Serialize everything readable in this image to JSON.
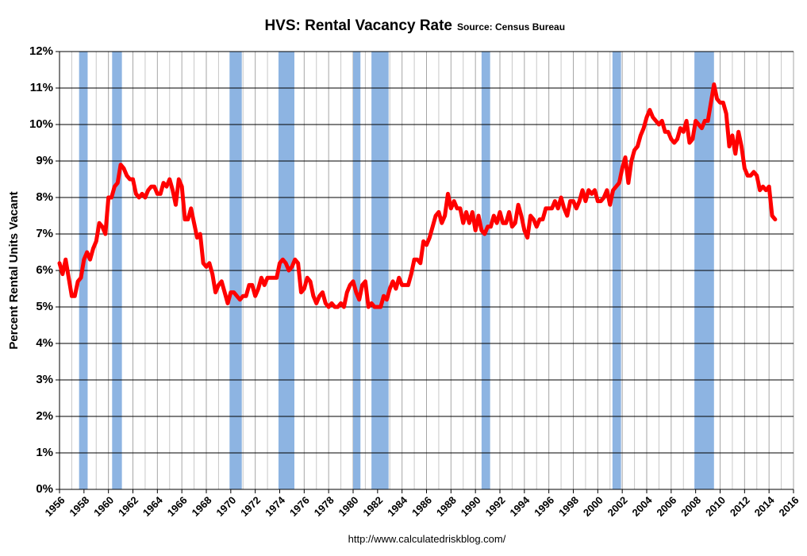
{
  "chart_data": {
    "type": "line",
    "title": "HVS: Rental Vacancy Rate",
    "subtitle": "Source: Census Bureau",
    "y_label": "Percent Rental Units Vacant",
    "footer": "http://www.calculatedriskblog.com/",
    "xlim": [
      1956,
      2016
    ],
    "xticks": [
      1956,
      1958,
      1960,
      1962,
      1964,
      1966,
      1968,
      1970,
      1972,
      1974,
      1976,
      1978,
      1980,
      1982,
      1984,
      1986,
      1988,
      1990,
      1992,
      1994,
      1996,
      1998,
      2000,
      2002,
      2004,
      2006,
      2008,
      2010,
      2012,
      2014,
      2016
    ],
    "ylim": [
      0,
      12
    ],
    "yticks": [
      {
        "value": 0,
        "label": "0%"
      },
      {
        "value": 1,
        "label": "1%"
      },
      {
        "value": 2,
        "label": "2%"
      },
      {
        "value": 3,
        "label": "3%"
      },
      {
        "value": 4,
        "label": "4%"
      },
      {
        "value": 5,
        "label": "5%"
      },
      {
        "value": 6,
        "label": "6%"
      },
      {
        "value": 7,
        "label": "7%"
      },
      {
        "value": 8,
        "label": "8%"
      },
      {
        "value": 9,
        "label": "9%"
      },
      {
        "value": 10,
        "label": "10%"
      },
      {
        "value": 11,
        "label": "11%"
      },
      {
        "value": 12,
        "label": "12%"
      }
    ],
    "grid": true,
    "recession_color": "#8db4e2",
    "recessions": [
      {
        "start": 1957.6,
        "end": 1958.3
      },
      {
        "start": 1960.3,
        "end": 1961.1
      },
      {
        "start": 1969.9,
        "end": 1970.9
      },
      {
        "start": 1973.9,
        "end": 1975.2
      },
      {
        "start": 1980.0,
        "end": 1980.6
      },
      {
        "start": 1981.5,
        "end": 1982.9
      },
      {
        "start": 1990.5,
        "end": 1991.2
      },
      {
        "start": 2001.2,
        "end": 2001.9
      },
      {
        "start": 2007.9,
        "end": 2009.5
      }
    ],
    "x": [
      1956,
      1956.25,
      1956.5,
      1956.75,
      1957,
      1957.25,
      1957.5,
      1957.75,
      1958,
      1958.25,
      1958.5,
      1958.75,
      1959,
      1959.25,
      1959.5,
      1959.75,
      1960,
      1960.25,
      1960.5,
      1960.75,
      1961,
      1961.25,
      1961.5,
      1961.75,
      1962,
      1962.25,
      1962.5,
      1962.75,
      1963,
      1963.25,
      1963.5,
      1963.75,
      1964,
      1964.25,
      1964.5,
      1964.75,
      1965,
      1965.25,
      1965.5,
      1965.75,
      1966,
      1966.25,
      1966.5,
      1966.75,
      1967,
      1967.25,
      1967.5,
      1967.75,
      1968,
      1968.25,
      1968.5,
      1968.75,
      1969,
      1969.25,
      1969.5,
      1969.75,
      1970,
      1970.25,
      1970.5,
      1970.75,
      1971,
      1971.25,
      1971.5,
      1971.75,
      1972,
      1972.25,
      1972.5,
      1972.75,
      1973,
      1973.25,
      1973.5,
      1973.75,
      1974,
      1974.25,
      1974.5,
      1974.75,
      1975,
      1975.25,
      1975.5,
      1975.75,
      1976,
      1976.25,
      1976.5,
      1976.75,
      1977,
      1977.25,
      1977.5,
      1977.75,
      1978,
      1978.25,
      1978.5,
      1978.75,
      1979,
      1979.25,
      1979.5,
      1979.75,
      1980,
      1980.25,
      1980.5,
      1980.75,
      1981,
      1981.25,
      1981.5,
      1981.75,
      1982,
      1982.25,
      1982.5,
      1982.75,
      1983,
      1983.25,
      1983.5,
      1983.75,
      1984,
      1984.25,
      1984.5,
      1984.75,
      1985,
      1985.25,
      1985.5,
      1985.75,
      1986,
      1986.25,
      1986.5,
      1986.75,
      1987,
      1987.25,
      1987.5,
      1987.75,
      1988,
      1988.25,
      1988.5,
      1988.75,
      1989,
      1989.25,
      1989.5,
      1989.75,
      1990,
      1990.25,
      1990.5,
      1990.75,
      1991,
      1991.25,
      1991.5,
      1991.75,
      1992,
      1992.25,
      1992.5,
      1992.75,
      1993,
      1993.25,
      1993.5,
      1993.75,
      1994,
      1994.25,
      1994.5,
      1994.75,
      1995,
      1995.25,
      1995.5,
      1995.75,
      1996,
      1996.25,
      1996.5,
      1996.75,
      1997,
      1997.25,
      1997.5,
      1997.75,
      1998,
      1998.25,
      1998.5,
      1998.75,
      1999,
      1999.25,
      1999.5,
      1999.75,
      2000,
      2000.25,
      2000.5,
      2000.75,
      2001,
      2001.25,
      2001.5,
      2001.75,
      2002,
      2002.25,
      2002.5,
      2002.75,
      2003,
      2003.25,
      2003.5,
      2003.75,
      2004,
      2004.25,
      2004.5,
      2004.75,
      2005,
      2005.25,
      2005.5,
      2005.75,
      2006,
      2006.25,
      2006.5,
      2006.75,
      2007,
      2007.25,
      2007.5,
      2007.75,
      2008,
      2008.25,
      2008.5,
      2008.75,
      2009,
      2009.25,
      2009.5,
      2009.75,
      2010,
      2010.25,
      2010.5,
      2010.75,
      2011,
      2011.25,
      2011.5,
      2011.75,
      2012,
      2012.25,
      2012.5,
      2012.75,
      2013,
      2013.25,
      2013.5,
      2013.75,
      2014,
      2014.25,
      2014.5
    ],
    "series": [
      {
        "color": "#ff0000",
        "values": [
          6.2,
          5.9,
          6.3,
          5.8,
          5.3,
          5.3,
          5.7,
          5.8,
          6.3,
          6.5,
          6.3,
          6.6,
          6.8,
          7.3,
          7.2,
          7.0,
          8.0,
          8.0,
          8.3,
          8.4,
          8.9,
          8.8,
          8.6,
          8.5,
          8.5,
          8.1,
          8.0,
          8.1,
          8.0,
          8.2,
          8.3,
          8.3,
          8.1,
          8.1,
          8.4,
          8.3,
          8.5,
          8.2,
          7.8,
          8.5,
          8.3,
          7.4,
          7.4,
          7.7,
          7.3,
          6.9,
          7.0,
          6.2,
          6.1,
          6.2,
          5.9,
          5.4,
          5.6,
          5.7,
          5.4,
          5.1,
          5.4,
          5.4,
          5.3,
          5.2,
          5.3,
          5.3,
          5.6,
          5.6,
          5.3,
          5.5,
          5.8,
          5.6,
          5.8,
          5.8,
          5.8,
          5.8,
          6.2,
          6.3,
          6.2,
          6.0,
          6.1,
          6.3,
          6.2,
          5.4,
          5.5,
          5.8,
          5.7,
          5.3,
          5.1,
          5.3,
          5.4,
          5.1,
          5.0,
          5.1,
          5.0,
          5.0,
          5.1,
          5.0,
          5.4,
          5.6,
          5.7,
          5.4,
          5.2,
          5.6,
          5.7,
          5.0,
          5.1,
          5.0,
          5.0,
          5.0,
          5.3,
          5.2,
          5.5,
          5.7,
          5.5,
          5.8,
          5.6,
          5.6,
          5.6,
          5.9,
          6.3,
          6.3,
          6.2,
          6.8,
          6.7,
          6.9,
          7.2,
          7.5,
          7.6,
          7.3,
          7.5,
          8.1,
          7.7,
          7.9,
          7.7,
          7.7,
          7.3,
          7.6,
          7.3,
          7.6,
          7.1,
          7.5,
          7.1,
          7.0,
          7.2,
          7.2,
          7.5,
          7.3,
          7.6,
          7.3,
          7.3,
          7.6,
          7.2,
          7.3,
          7.8,
          7.5,
          7.1,
          6.9,
          7.5,
          7.4,
          7.2,
          7.4,
          7.4,
          7.7,
          7.7,
          7.7,
          7.9,
          7.7,
          8.0,
          7.7,
          7.5,
          7.9,
          7.9,
          7.7,
          7.9,
          8.2,
          7.9,
          8.2,
          8.1,
          8.2,
          7.9,
          7.9,
          8.0,
          8.2,
          7.8,
          8.2,
          8.3,
          8.4,
          8.8,
          9.1,
          8.4,
          9.0,
          9.3,
          9.4,
          9.7,
          9.9,
          10.2,
          10.4,
          10.2,
          10.1,
          10.0,
          10.1,
          9.8,
          9.8,
          9.6,
          9.5,
          9.6,
          9.9,
          9.8,
          10.1,
          9.5,
          9.6,
          10.1,
          10.0,
          9.9,
          10.1,
          10.1,
          10.6,
          11.1,
          10.7,
          10.6,
          10.6,
          10.3,
          9.4,
          9.7,
          9.2,
          9.8,
          9.4,
          8.8,
          8.6,
          8.6,
          8.7,
          8.6,
          8.2,
          8.3,
          8.2,
          8.3,
          7.5,
          7.4
        ]
      }
    ]
  }
}
